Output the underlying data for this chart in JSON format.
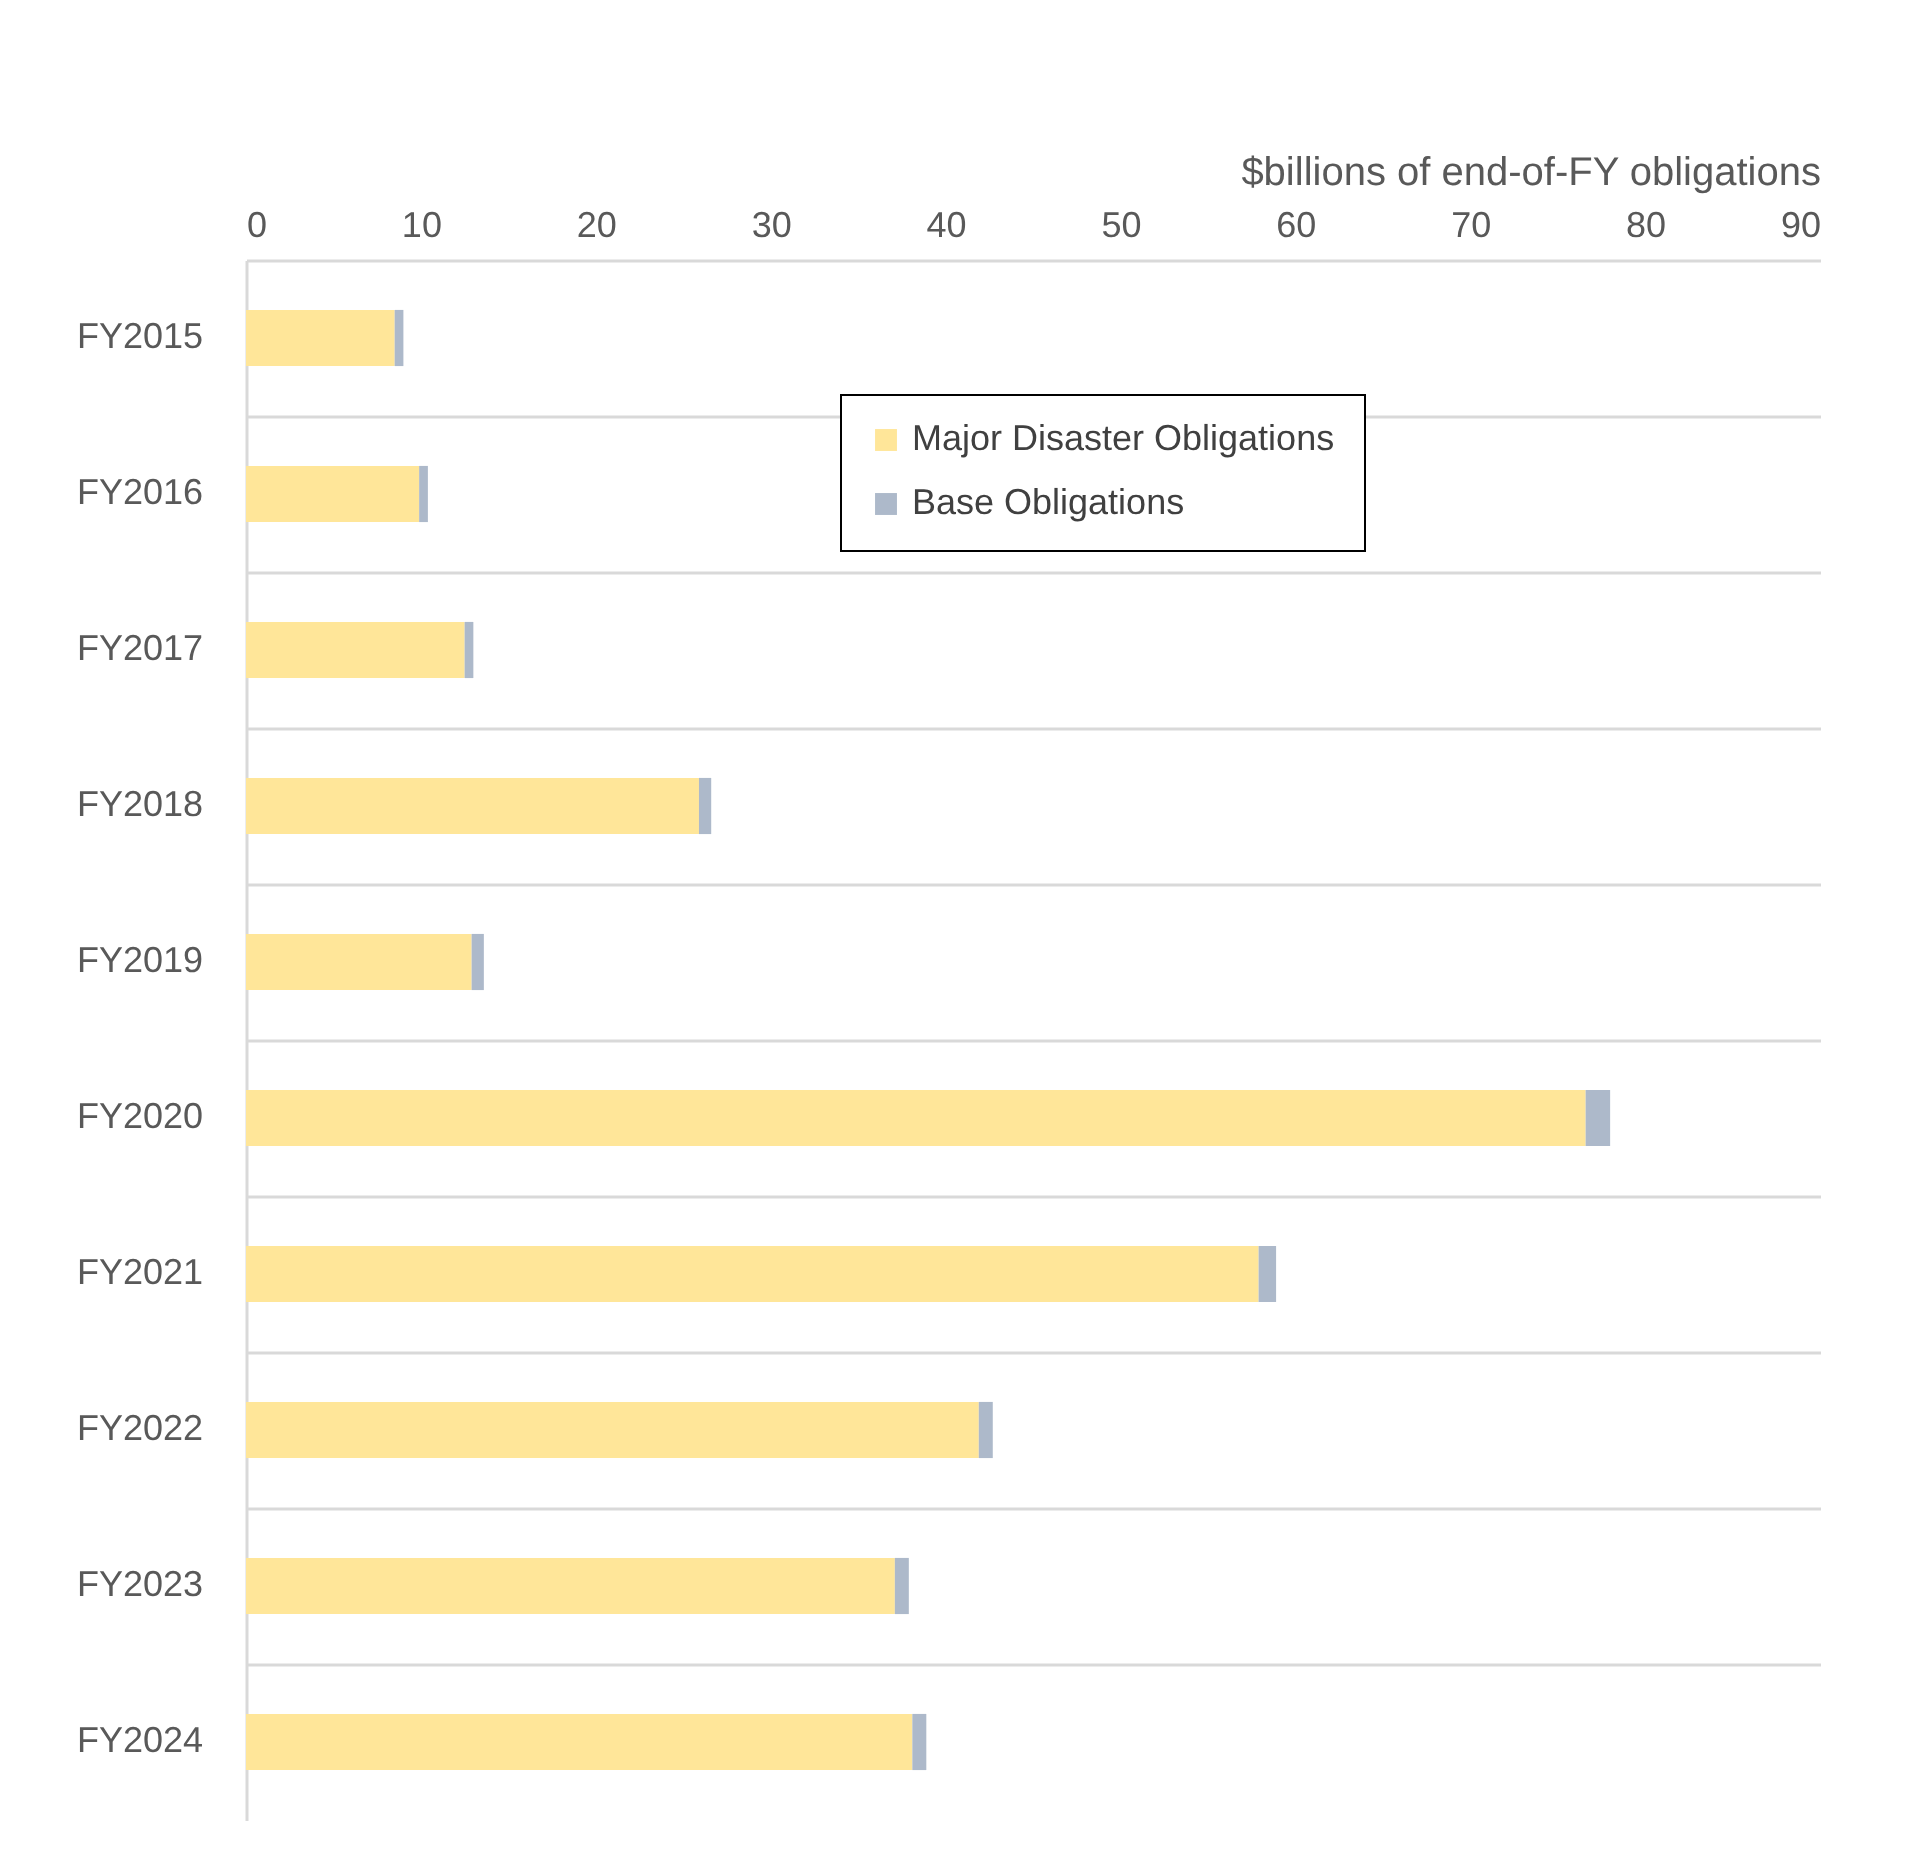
{
  "chart_data": {
    "type": "bar",
    "orientation": "horizontal",
    "stacked": true,
    "xlabel": "$billions of end-of-FY obligations",
    "categories": [
      "FY2015",
      "FY2016",
      "FY2017",
      "FY2018",
      "FY2019",
      "FY2020",
      "FY2021",
      "FY2022",
      "FY2023",
      "FY2024"
    ],
    "series": [
      {
        "name": "Major Disaster Obligations",
        "color": "#ffe699",
        "values": [
          8.5,
          9.9,
          12.5,
          25.9,
          12.9,
          76.6,
          57.9,
          41.9,
          37.1,
          38.1
        ]
      },
      {
        "name": "Base Obligations",
        "color": "#adb9ca",
        "values": [
          0.5,
          0.5,
          0.5,
          0.7,
          0.7,
          1.4,
          1.0,
          0.8,
          0.8,
          0.8
        ]
      }
    ],
    "xlim": [
      0,
      90
    ],
    "xticks": [
      0,
      10,
      20,
      30,
      40,
      50,
      60,
      70,
      80,
      90
    ],
    "grid": "y",
    "legend": "top"
  }
}
